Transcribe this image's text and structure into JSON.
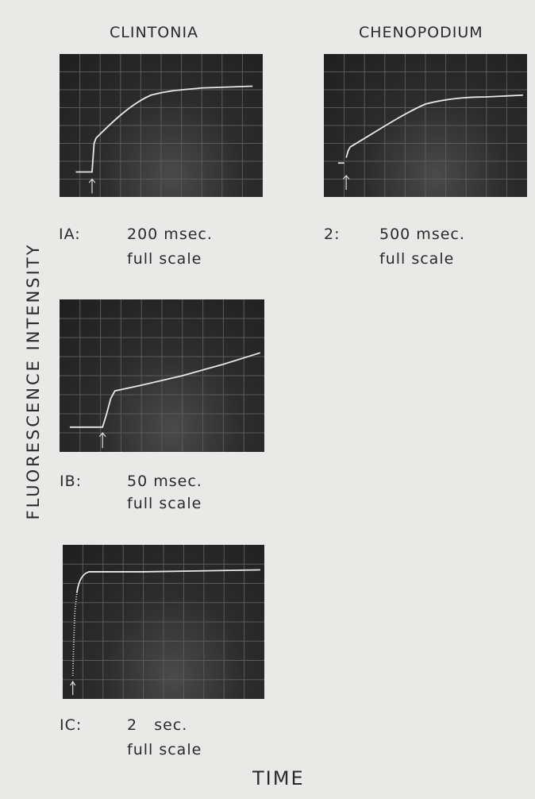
{
  "columns": [
    "CLINTONIA",
    "CHENOPODIUM"
  ],
  "y_axis_label": "FLUORESCENCE INTENSITY",
  "x_axis_label": "TIME",
  "panels": [
    {
      "id": "IA:",
      "duration": "200 msec.",
      "scale": "full scale"
    },
    {
      "id": "2:",
      "duration": "500 msec.",
      "scale": "full scale"
    },
    {
      "id": "IB:",
      "duration": "50 msec.",
      "scale": "full scale"
    },
    {
      "id": "IC:",
      "duration": "2   sec.",
      "scale": "full scale"
    }
  ]
}
